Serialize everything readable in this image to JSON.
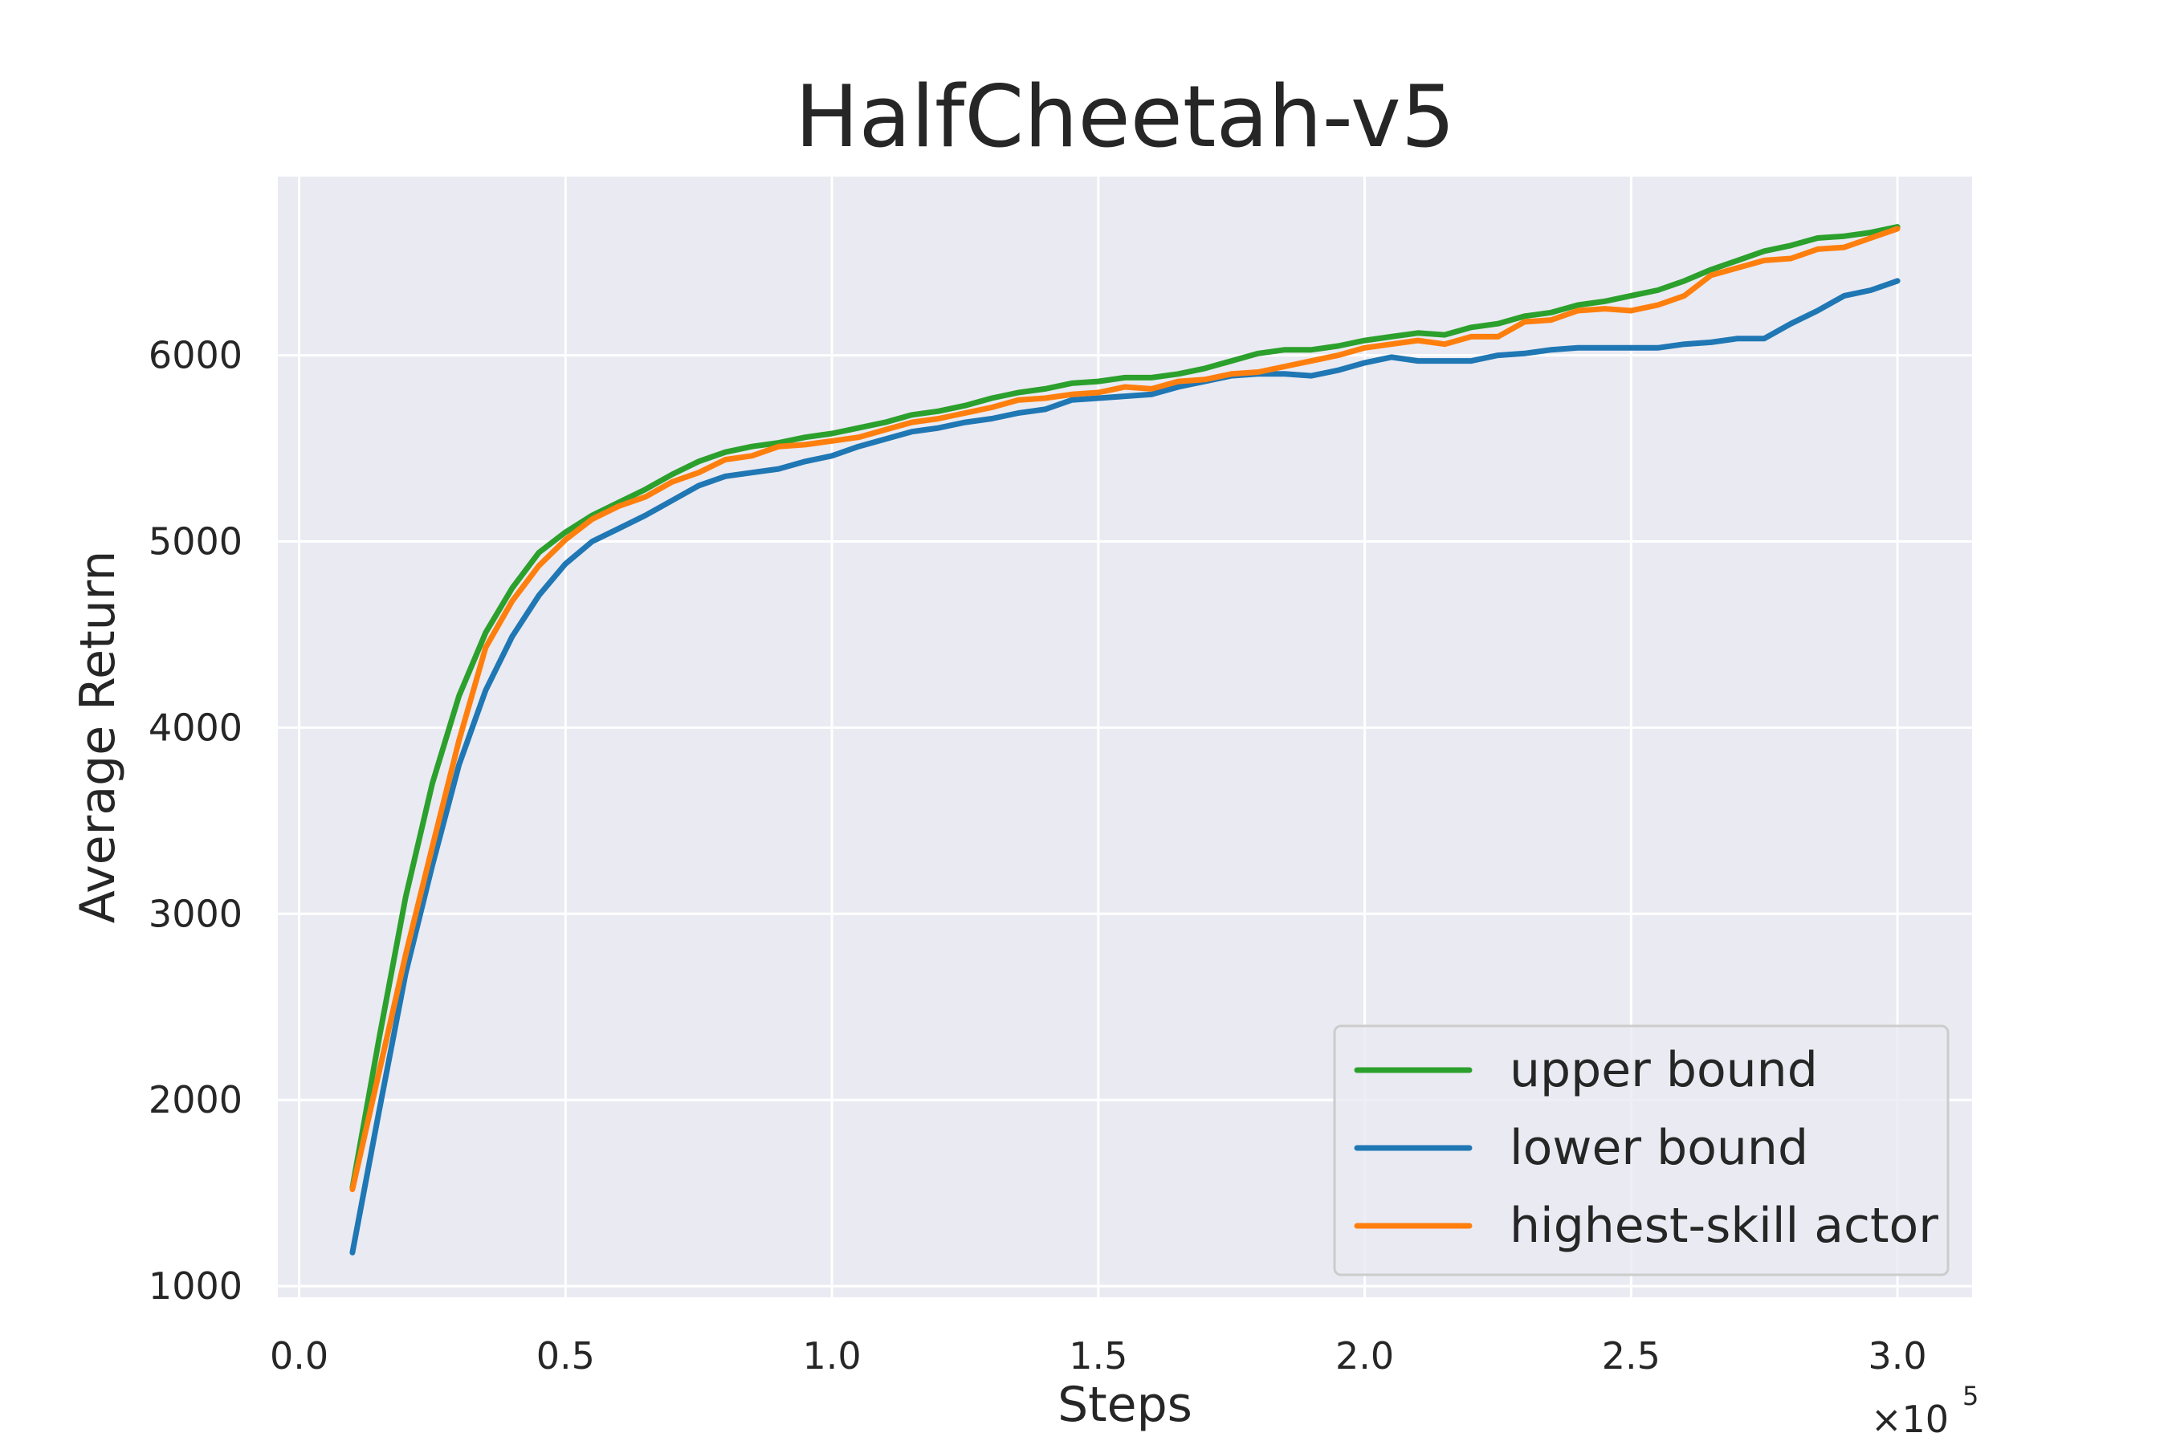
{
  "chart_data": {
    "type": "line",
    "title": "HalfCheetah-v5",
    "xlabel": "Steps",
    "ylabel": "Average Return",
    "x_offset_text": "×10",
    "x_offset_exp": "5",
    "xlim": [
      -0.04,
      3.14
    ],
    "ylim": [
      940,
      6960
    ],
    "xticks": [
      0.0,
      0.5,
      1.0,
      1.5,
      2.0,
      2.5,
      3.0
    ],
    "xtick_labels": [
      "0.0",
      "0.5",
      "1.0",
      "1.5",
      "2.0",
      "2.5",
      "3.0"
    ],
    "yticks": [
      1000,
      2000,
      3000,
      4000,
      5000,
      6000
    ],
    "ytick_labels": [
      "1000",
      "2000",
      "3000",
      "4000",
      "5000",
      "6000"
    ],
    "grid": true,
    "legend_position": "lower-right",
    "x": [
      0.1,
      0.15,
      0.2,
      0.25,
      0.3,
      0.35,
      0.4,
      0.45,
      0.5,
      0.55,
      0.6,
      0.65,
      0.7,
      0.75,
      0.8,
      0.85,
      0.9,
      0.95,
      1.0,
      1.05,
      1.1,
      1.15,
      1.2,
      1.25,
      1.3,
      1.35,
      1.4,
      1.45,
      1.5,
      1.55,
      1.6,
      1.65,
      1.7,
      1.75,
      1.8,
      1.85,
      1.9,
      1.95,
      2.0,
      2.05,
      2.1,
      2.15,
      2.2,
      2.25,
      2.3,
      2.35,
      2.4,
      2.45,
      2.5,
      2.55,
      2.6,
      2.65,
      2.7,
      2.75,
      2.8,
      2.85,
      2.9,
      2.95,
      3.0
    ],
    "series": [
      {
        "name": "upper bound",
        "color": "#2ca02c",
        "values": [
          1530,
          2330,
          3090,
          3700,
          4170,
          4510,
          4750,
          4940,
          5050,
          5140,
          5210,
          5280,
          5360,
          5430,
          5480,
          5510,
          5530,
          5560,
          5580,
          5610,
          5640,
          5680,
          5700,
          5730,
          5770,
          5800,
          5820,
          5850,
          5860,
          5880,
          5880,
          5900,
          5930,
          5970,
          6010,
          6030,
          6030,
          6050,
          6080,
          6100,
          6120,
          6110,
          6150,
          6170,
          6210,
          6230,
          6270,
          6290,
          6320,
          6350,
          6400,
          6460,
          6510,
          6560,
          6590,
          6630,
          6640,
          6660,
          6690
        ]
      },
      {
        "name": "lower bound",
        "color": "#1f77b4",
        "values": [
          1180,
          1940,
          2680,
          3260,
          3800,
          4200,
          4490,
          4710,
          4880,
          5000,
          5070,
          5140,
          5220,
          5300,
          5350,
          5370,
          5390,
          5430,
          5460,
          5510,
          5550,
          5590,
          5610,
          5640,
          5660,
          5690,
          5710,
          5760,
          5770,
          5780,
          5790,
          5830,
          5860,
          5890,
          5900,
          5900,
          5890,
          5920,
          5960,
          5990,
          5970,
          5970,
          5970,
          6000,
          6010,
          6030,
          6040,
          6040,
          6040,
          6040,
          6060,
          6070,
          6090,
          6090,
          6170,
          6240,
          6320,
          6350,
          6400
        ]
      },
      {
        "name": "highest-skill actor",
        "color": "#ff7f0e",
        "values": [
          1520,
          2150,
          2780,
          3360,
          3930,
          4430,
          4680,
          4870,
          5010,
          5120,
          5190,
          5240,
          5320,
          5370,
          5440,
          5460,
          5510,
          5520,
          5540,
          5560,
          5600,
          5640,
          5660,
          5690,
          5720,
          5760,
          5770,
          5790,
          5800,
          5830,
          5820,
          5860,
          5870,
          5900,
          5910,
          5940,
          5970,
          6000,
          6040,
          6060,
          6080,
          6060,
          6100,
          6100,
          6180,
          6190,
          6240,
          6250,
          6240,
          6270,
          6320,
          6430,
          6470,
          6510,
          6520,
          6570,
          6580,
          6630,
          6680
        ]
      }
    ]
  }
}
